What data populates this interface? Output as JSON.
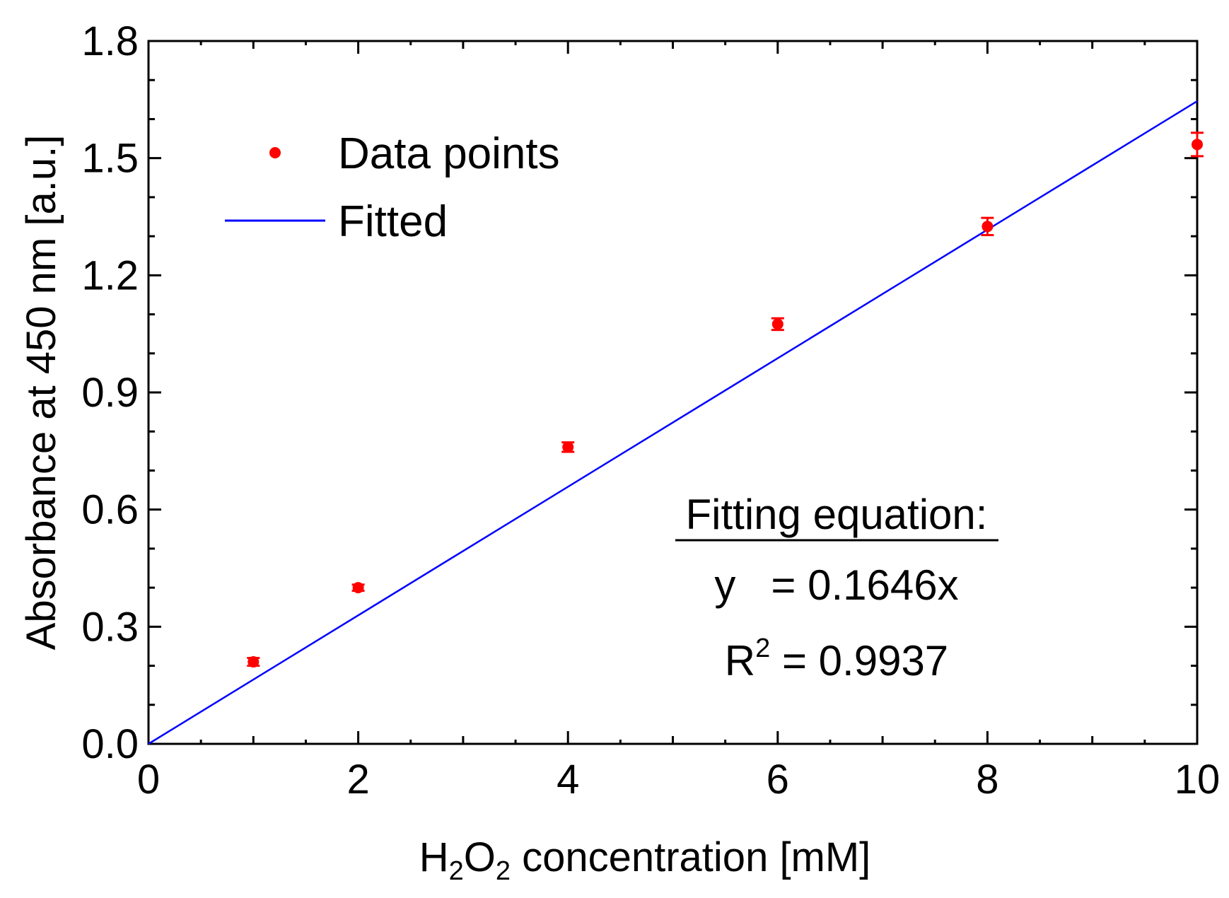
{
  "chart_data": {
    "type": "scatter",
    "title": "",
    "xlabel": {
      "prefix": "H",
      "sub1": "2",
      "middle": "O",
      "sub2": "2",
      "suffix": " concentration [mM]"
    },
    "ylabel": "Absorbance at 450 nm [a.u.]",
    "xlim": [
      0,
      10
    ],
    "ylim": [
      0,
      1.8
    ],
    "xticks": [
      "0",
      "2",
      "4",
      "6",
      "8",
      "10"
    ],
    "yticks": [
      "0.0",
      "0.3",
      "0.6",
      "0.9",
      "1.2",
      "1.5",
      "1.8"
    ],
    "grid": false,
    "series": [
      {
        "name": "Data points",
        "kind": "scatter",
        "color": "#ff0000",
        "points": [
          {
            "x": 1,
            "y": 0.21,
            "err": 0.01
          },
          {
            "x": 2,
            "y": 0.4,
            "err": 0.008
          },
          {
            "x": 4,
            "y": 0.76,
            "err": 0.012
          },
          {
            "x": 6,
            "y": 1.075,
            "err": 0.015
          },
          {
            "x": 8,
            "y": 1.325,
            "err": 0.022
          },
          {
            "x": 10,
            "y": 1.535,
            "err": 0.03
          }
        ]
      },
      {
        "name": "Fitted",
        "kind": "line",
        "color": "#0000ff",
        "slope": 0.1646,
        "x": [
          0,
          10
        ]
      }
    ],
    "legend": {
      "placement": "top-left",
      "entries": [
        "Data points",
        "Fitted"
      ]
    },
    "annotation": {
      "heading": "Fitting equation:",
      "equation": "y   = 0.1646x",
      "r2_label": "R",
      "r2_sup": "2",
      "r2_value": " = 0.9937"
    }
  }
}
